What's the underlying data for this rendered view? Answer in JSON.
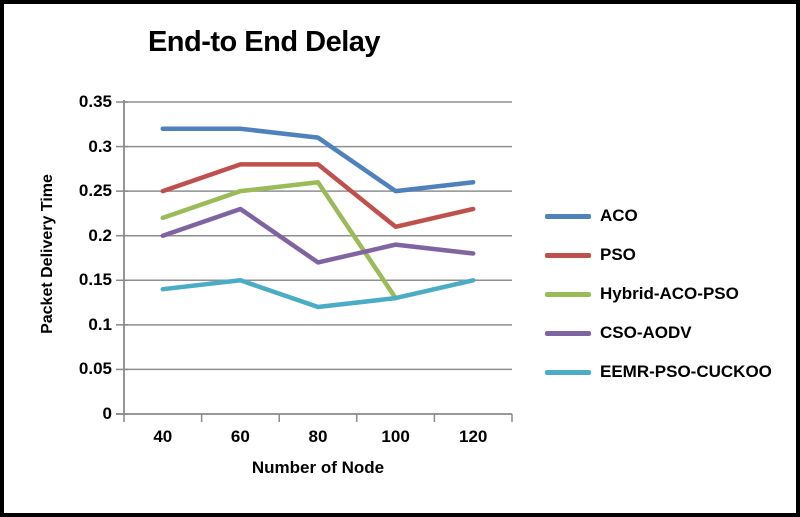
{
  "chart_data": {
    "type": "line",
    "title": "End-to End Delay",
    "xlabel": "Number of Node",
    "ylabel": "Packet Delivery Time",
    "categories": [
      "40",
      "60",
      "80",
      "100",
      "120"
    ],
    "y_ticks": [
      "0",
      "0.05",
      "0.1",
      "0.15",
      "0.2",
      "0.25",
      "0.3",
      "0.35"
    ],
    "ylim": [
      0,
      0.35
    ],
    "grid": true,
    "legend_position": "right",
    "axis_color": "#8a8a8a",
    "grid_color": "#8f8f8f",
    "series": [
      {
        "name": "ACO",
        "color": "#4F81BD",
        "values": [
          0.32,
          0.32,
          0.31,
          0.25,
          0.26
        ]
      },
      {
        "name": "PSO",
        "color": "#C0504D",
        "values": [
          0.25,
          0.28,
          0.28,
          0.21,
          0.23
        ]
      },
      {
        "name": "Hybrid-ACO-PSO",
        "color": "#9BBB59",
        "values": [
          0.22,
          0.25,
          0.26,
          0.13,
          null
        ]
      },
      {
        "name": "CSO-AODV",
        "color": "#8064A2",
        "values": [
          0.2,
          0.23,
          0.17,
          0.19,
          0.18
        ]
      },
      {
        "name": "EEMR-PSO-CUCKOO",
        "color": "#4BACC6",
        "values": [
          0.14,
          0.15,
          0.12,
          0.13,
          0.15
        ]
      }
    ]
  }
}
